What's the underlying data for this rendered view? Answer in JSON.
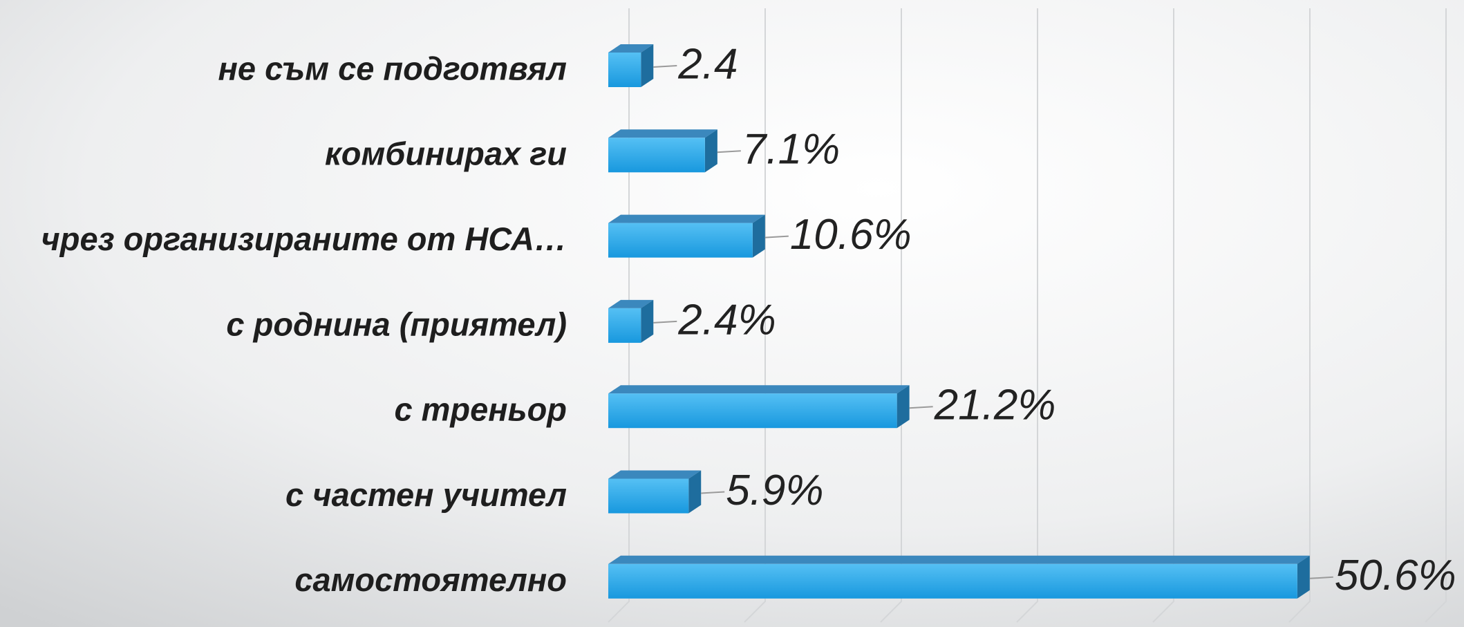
{
  "chart_data": {
    "type": "bar",
    "orientation": "horizontal",
    "categories": [
      "не съм се подготвял",
      "комбинирах ги",
      "чрез организираните от НСА…",
      "с роднина (приятел)",
      "с треньор",
      "с частен учител",
      "самостоятелно"
    ],
    "values": [
      2.4,
      7.1,
      10.6,
      2.4,
      21.2,
      5.9,
      50.6
    ],
    "value_labels": [
      "2.4",
      "7.1%",
      "10.6%",
      "2.4%",
      "21.2%",
      "5.9%",
      "50.6%"
    ],
    "color": "#2aa8ec",
    "xlim": [
      0,
      60
    ],
    "xticks": [
      0,
      10,
      20,
      30,
      40,
      50,
      60
    ],
    "grid": true
  }
}
